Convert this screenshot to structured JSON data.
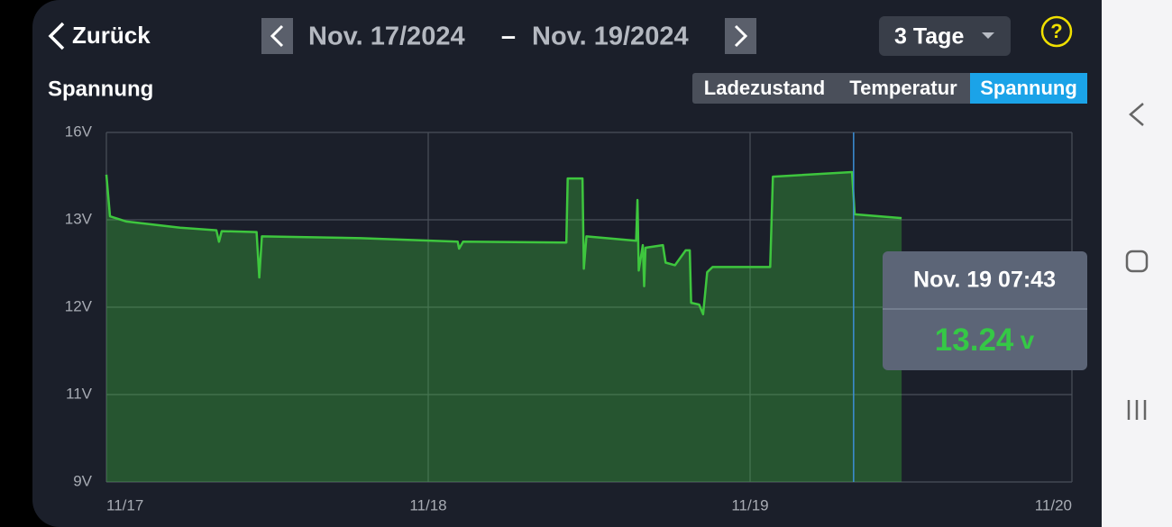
{
  "header": {
    "back": "Zurück",
    "date_from": "Nov. 17/2024",
    "date_sep": "–",
    "date_to": "Nov. 19/2024",
    "range": "3 Tage",
    "help": "?"
  },
  "tabs": {
    "items": [
      "Ladezustand",
      "Temperatur",
      "Spannung"
    ],
    "active": 2
  },
  "chart_data": {
    "type": "area",
    "title": "Spannung",
    "color": "#3ec63e",
    "grid": true,
    "x": [
      0,
      0.27,
      1.5,
      5.5,
      8.2,
      8.4,
      8.6,
      11.2,
      11.4,
      11.6,
      19,
      26.2,
      26.3,
      26.6,
      34.3,
      34.4,
      35.5,
      35.6,
      35.8,
      39.5,
      39.6,
      39.7,
      40,
      40.1,
      40.2,
      41.5,
      41.7,
      42.4,
      43.2,
      43.5,
      43.6,
      44.2,
      44.5,
      44.8,
      45.2,
      49.5,
      49.7,
      55.6,
      55.8,
      59.3
    ],
    "values": [
      14.55,
      13.12,
      12.98,
      12.91,
      12.88,
      12.75,
      12.87,
      12.86,
      12.34,
      12.81,
      12.79,
      12.75,
      12.67,
      12.75,
      12.74,
      14.42,
      14.42,
      12.44,
      12.81,
      12.76,
      13.68,
      12.42,
      12.71,
      12.24,
      12.68,
      12.71,
      12.51,
      12.48,
      12.65,
      12.65,
      12.05,
      12.03,
      11.92,
      12.4,
      12.46,
      12.46,
      14.48,
      14.64,
      13.19,
      13.06
    ],
    "xlim": [
      0,
      72
    ],
    "xticks": [
      {
        "value": 0,
        "label": "11/17"
      },
      {
        "value": 24,
        "label": "11/18"
      },
      {
        "value": 48,
        "label": "11/19"
      },
      {
        "value": 72,
        "label": "11/20"
      }
    ],
    "ylim": [
      9,
      16
    ],
    "yticks": [
      {
        "value": 9,
        "label": "9V"
      },
      {
        "value": 11,
        "label": "11V"
      },
      {
        "value": 12,
        "label": "12V"
      },
      {
        "value": 13,
        "label": "13V"
      },
      {
        "value": 16,
        "label": "16V"
      }
    ],
    "cursor": {
      "x": 55.72,
      "time_label": "Nov. 19 07:43",
      "value": 13.24,
      "unit": "v"
    }
  }
}
